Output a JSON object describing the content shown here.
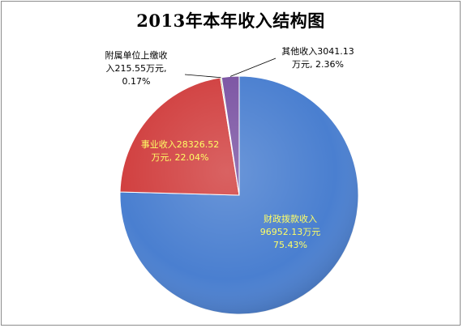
{
  "chart_data": {
    "type": "pie",
    "title": "2013年本年收入结构图",
    "slices": [
      {
        "label_lines": [
          "财政拨款收入",
          "96952.13万元",
          "75.43%"
        ],
        "value": 96952.13,
        "percent": 75.43,
        "color": "#4a7fd0",
        "label_color": "#ffff66"
      },
      {
        "label_lines": [
          "事业收入28326.52",
          "万元, 22.04%"
        ],
        "value": 28326.52,
        "percent": 22.04,
        "color": "#d14040",
        "label_color": "#ffff66"
      },
      {
        "label_lines": [
          "附属单位上缴收",
          "入215.55万元,",
          "0.17%"
        ],
        "value": 215.55,
        "percent": 0.17,
        "color": "#8fb65a",
        "label_color": "#000000"
      },
      {
        "label_lines": [
          "其他收入3041.13",
          "万元, 2.36%"
        ],
        "value": 3041.13,
        "percent": 2.36,
        "color": "#7b54a3",
        "label_color": "#000000"
      }
    ]
  }
}
